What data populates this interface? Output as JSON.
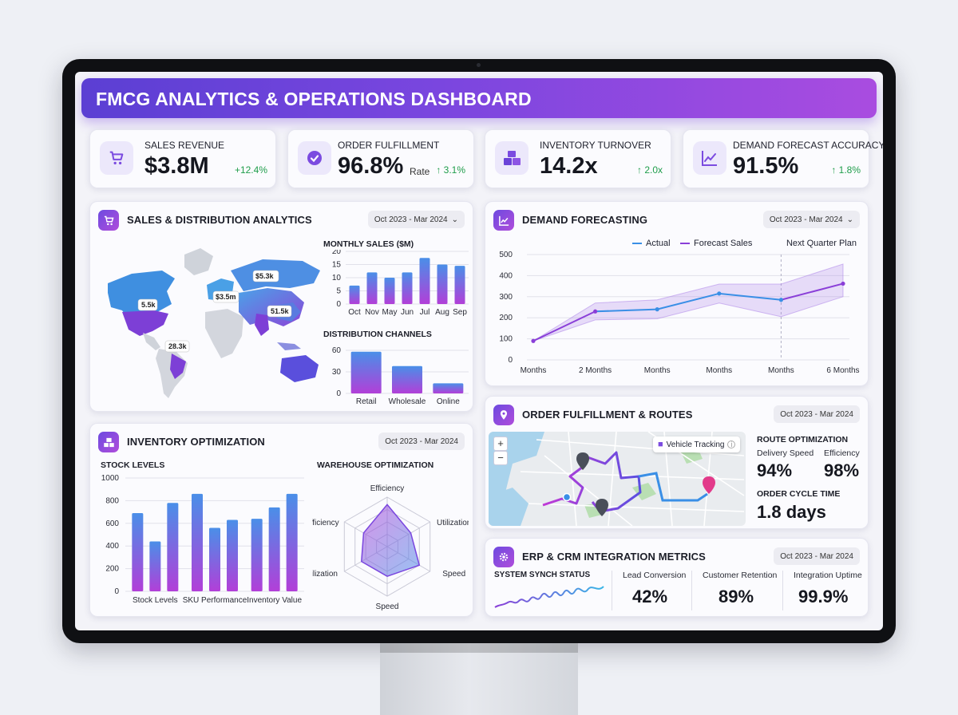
{
  "header": {
    "title": "FMCG ANALYTICS & OPERATIONS DASHBOARD"
  },
  "kpis": [
    {
      "title": "SALES REVENUE",
      "value": "$3.8M",
      "suffix": "",
      "delta": "+12.4%",
      "icon": "cart-icon"
    },
    {
      "title": "ORDER FULFILLMENT",
      "value": "96.8%",
      "suffix": "Rate",
      "delta": "↑ 3.1%",
      "icon": "check-badge-icon"
    },
    {
      "title": "INVENTORY TURNOVER",
      "value": "14.2x",
      "suffix": "",
      "delta": "↑ 2.0x",
      "icon": "boxes-icon"
    },
    {
      "title": "DEMAND FORECAST ACCURACY",
      "value": "91.5%",
      "suffix": "",
      "delta": "↑ 1.8%",
      "icon": "trend-chart-icon"
    }
  ],
  "sales_panel": {
    "title": "SALES & DISTRIBUTION ANALYTICS",
    "date_range": "Oct 2023 - Mar 2024",
    "map_labels": [
      "5.5k",
      "$3.5m",
      "$5.3k",
      "51.5k",
      "28.3k"
    ]
  },
  "demand_panel": {
    "title": "DEMAND FORECASTING",
    "date_range": "Oct 2023 - Mar 2024",
    "legend_actual": "Actual",
    "legend_forecast": "Forecast Sales",
    "plan_label": "Next Quarter Plan"
  },
  "inventory_panel": {
    "title": "INVENTORY OPTIMIZATION",
    "date_range": "Oct 2023 - Mar 2024",
    "stock_title": "STOCK LEVELS",
    "warehouse_title": "WAREHOUSE OPTIMIZATION"
  },
  "order_panel": {
    "title": "ORDER FULFILLMENT & ROUTES",
    "date_range": "Oct 2023 - Mar 2024",
    "vehicle_tracking": "Vehicle Tracking",
    "route_title": "ROUTE OPTIMIZATION",
    "delivery_label": "Delivery Speed",
    "delivery_value": "94%",
    "efficiency_label": "Efficiency",
    "efficiency_value": "98%",
    "cycle_label": "ORDER CYCLE TIME",
    "cycle_value": "1.8 days"
  },
  "erp_panel": {
    "title": "ERP & CRM INTEGRATION METRICS",
    "date_range": "Oct 2023 - Mar 2024",
    "sync_label": "SYSTEM SYNCH STATUS",
    "metrics": [
      {
        "label": "Lead Conversion",
        "value": "42%"
      },
      {
        "label": "Customer Retention",
        "value": "89%"
      },
      {
        "label": "Integration Uptime",
        "value": "99.9%"
      }
    ]
  },
  "chart_data": [
    {
      "id": "monthly_sales",
      "type": "bar",
      "title": "MONTHLY SALES ($M)",
      "categories": [
        "Oct",
        "Nov",
        "May",
        "Jun",
        "Jul",
        "Aug",
        "Sep"
      ],
      "values": [
        7,
        12,
        10,
        12,
        17.5,
        15,
        14.5
      ],
      "ylim": [
        0,
        20
      ],
      "yticks": [
        0,
        5,
        10,
        15,
        20
      ]
    },
    {
      "id": "distribution_channels",
      "type": "bar",
      "title": "DISTRIBUTION CHANNELS",
      "categories": [
        "Retail",
        "Wholesale",
        "Online"
      ],
      "values": [
        58,
        38,
        14
      ],
      "ylim": [
        0,
        60
      ],
      "yticks": [
        0,
        30,
        60
      ]
    },
    {
      "id": "demand_forecast",
      "type": "line",
      "categories": [
        "Months",
        "2 Months",
        "Months",
        "Months",
        "Months",
        "6 Months"
      ],
      "series": [
        {
          "name": "Actual",
          "values": [
            90,
            230,
            240,
            315,
            285,
            null
          ]
        },
        {
          "name": "Forecast Sales",
          "values": [
            90,
            230,
            240,
            315,
            285,
            362
          ]
        }
      ],
      "band_upper": [
        90,
        270,
        285,
        360,
        360,
        455
      ],
      "band_lower": [
        90,
        190,
        195,
        270,
        205,
        300
      ],
      "ylim": [
        0,
        500
      ],
      "yticks": [
        0,
        100,
        200,
        300,
        400,
        500
      ]
    },
    {
      "id": "stock_levels",
      "type": "bar",
      "categories": [
        "Stock Levels",
        "SKU Performance",
        "Inventory Value"
      ],
      "series": [
        {
          "values": [
            690,
            440,
            780
          ]
        },
        {
          "values": [
            860,
            560,
            630
          ]
        },
        {
          "values": [
            640,
            740,
            860
          ]
        }
      ],
      "ylim": [
        0,
        1000
      ],
      "yticks": [
        0,
        200,
        400,
        600,
        800,
        1000
      ]
    },
    {
      "id": "warehouse_radar",
      "type": "radar",
      "axes": [
        "Efficiency",
        "Utilization",
        "Speed",
        "Speed",
        "Utilization",
        "Efficiency"
      ],
      "values": [
        0.85,
        0.55,
        0.75,
        0.6,
        0.6,
        0.55
      ]
    }
  ],
  "colors": {
    "purple": "#8a3fd8",
    "blue": "#3a8fe6",
    "accent": "#6d4ae0",
    "green": "#1f9d4b"
  }
}
